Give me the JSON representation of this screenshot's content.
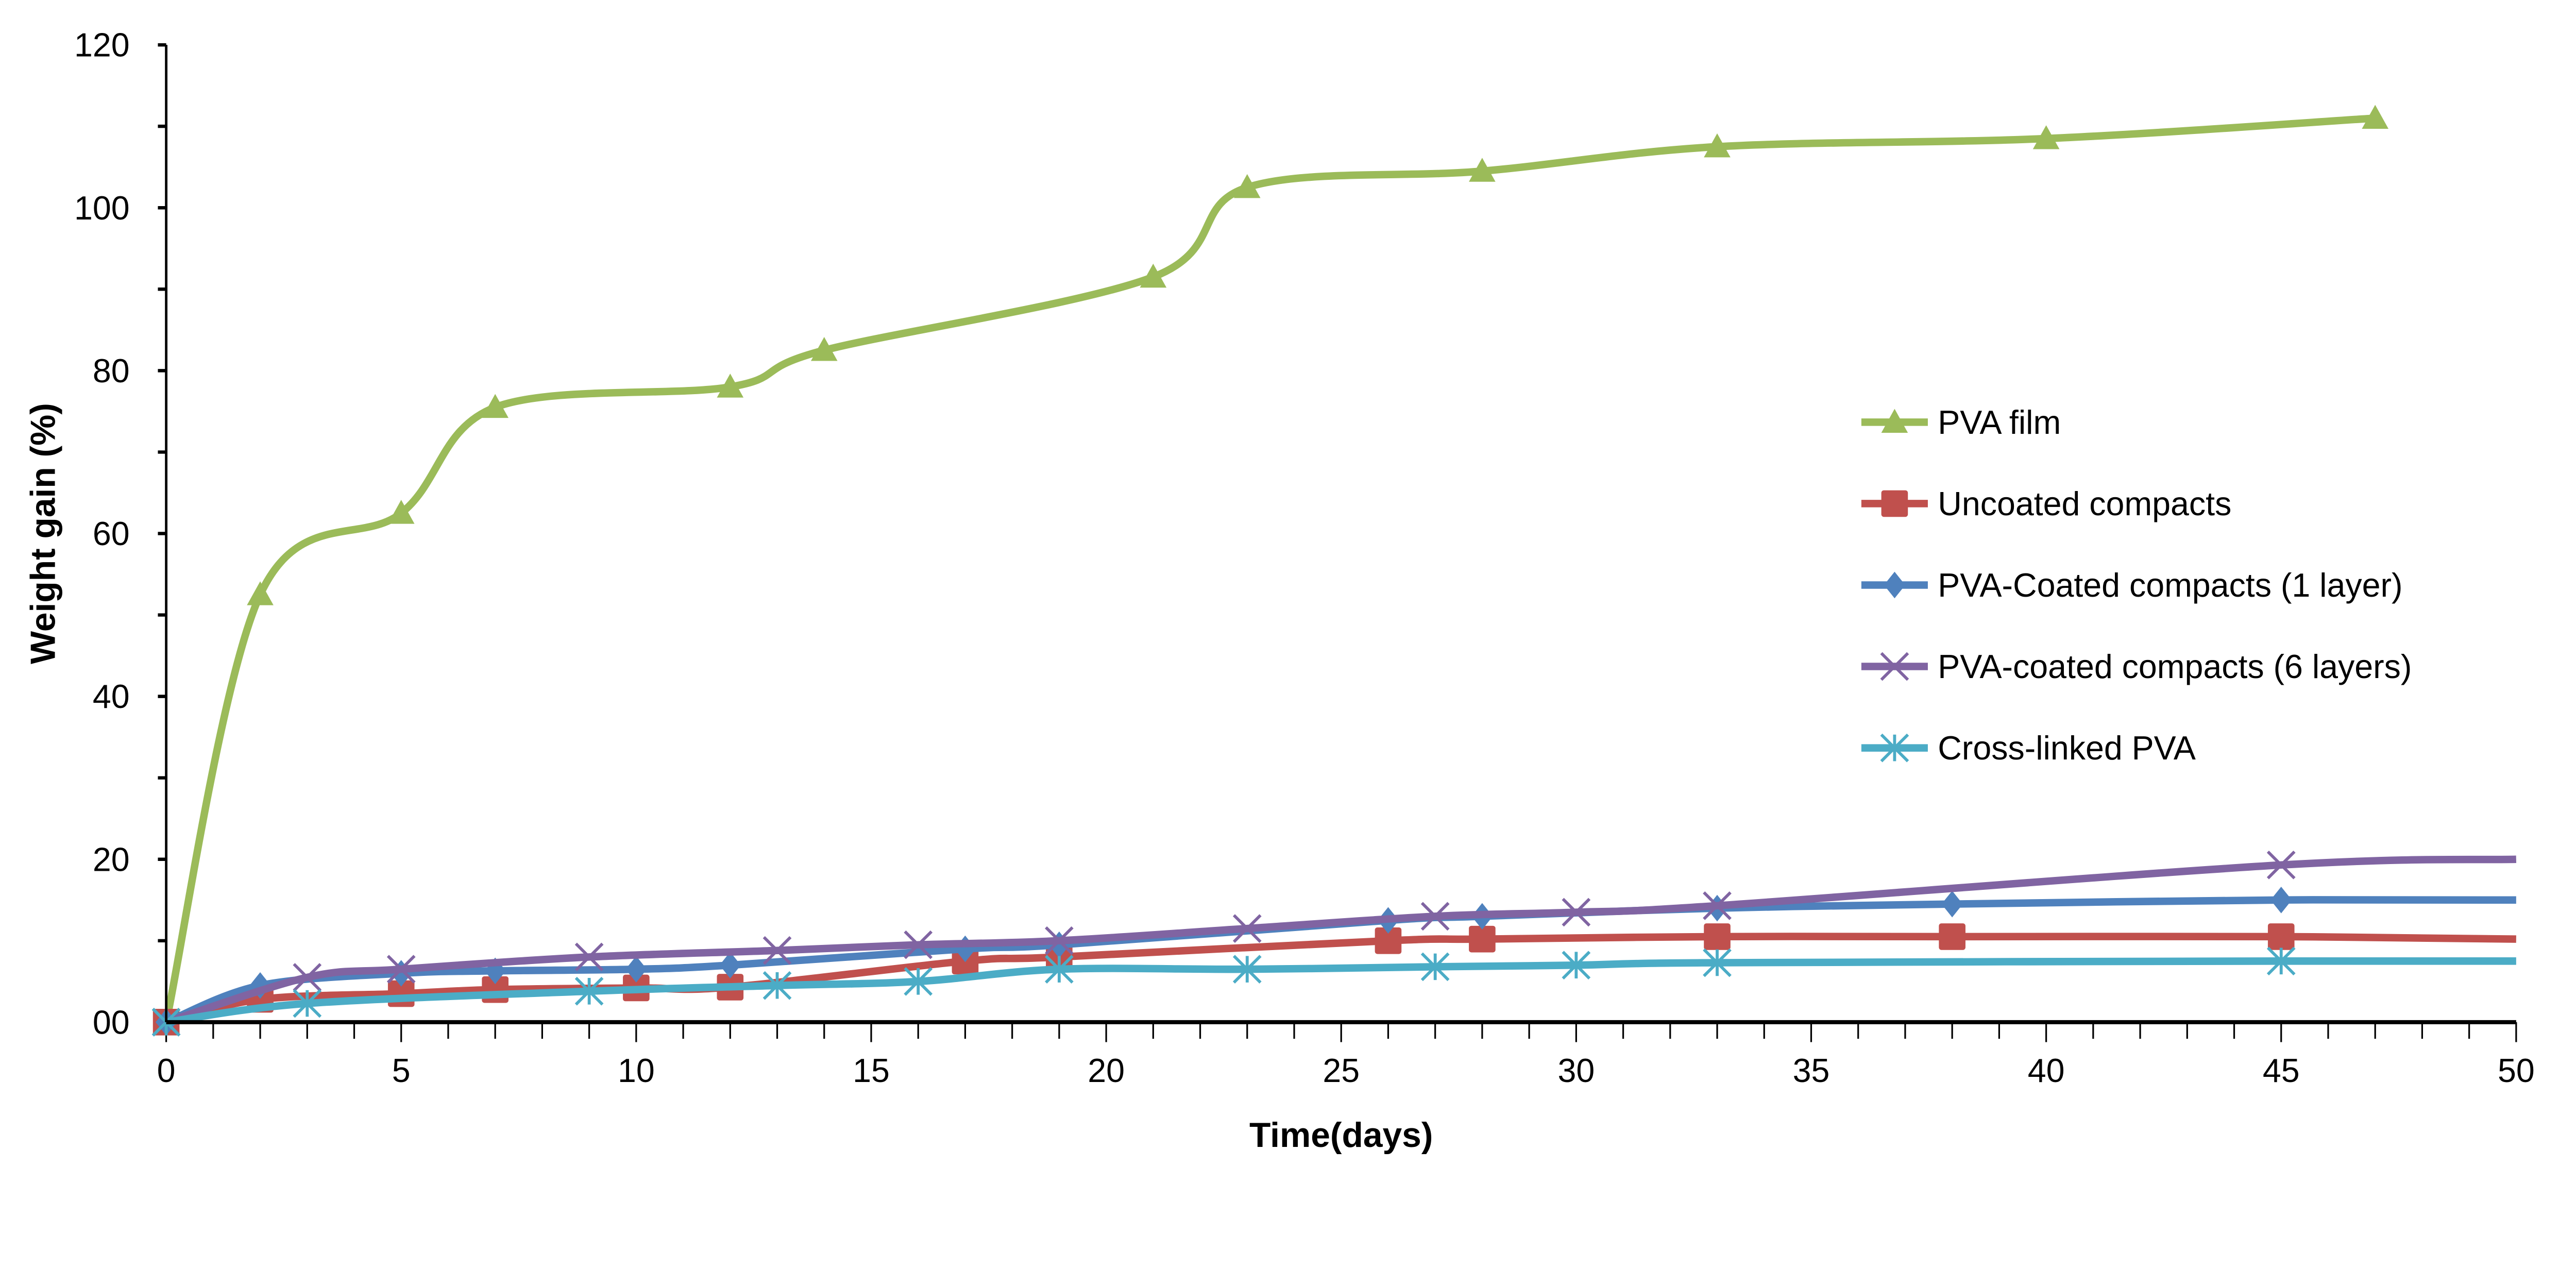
{
  "chart_data": {
    "type": "line",
    "title": "",
    "xlabel": "Time(days)",
    "ylabel": "Weight gain (%)",
    "xlim": [
      0,
      50
    ],
    "ylim": [
      0,
      120
    ],
    "x_ticks": [
      "0",
      "5",
      "10",
      "15",
      "20",
      "25",
      "30",
      "35",
      "40",
      "45",
      "50"
    ],
    "y_ticks": [
      "00",
      "20",
      "40",
      "60",
      "80",
      "100",
      "120"
    ],
    "grid": false,
    "smoothed": true,
    "legend_position": "right",
    "series": [
      {
        "name": "PVA film",
        "color": "#9BBB59",
        "marker": "triangle",
        "x": [
          0,
          2,
          5,
          7,
          12,
          14,
          21,
          23,
          28,
          33,
          40,
          47
        ],
        "y": [
          0,
          52.5,
          62.5,
          75.5,
          78,
          82.5,
          91.5,
          102.5,
          104.5,
          107.5,
          108.5,
          111
        ]
      },
      {
        "name": "Uncoated compacts",
        "color": "#C0504D",
        "marker": "square",
        "x": [
          0,
          2,
          5,
          7,
          10,
          12,
          17,
          19,
          26,
          28,
          33,
          38,
          45,
          50
        ],
        "y": [
          0,
          2.8,
          3.5,
          4,
          4.2,
          4.3,
          7.5,
          8,
          10,
          10.2,
          10.5,
          10.5,
          10.5,
          10.2
        ]
      },
      {
        "name": "PVA-Coated compacts (1 layer)",
        "color": "#4F81BD",
        "marker": "diamond",
        "x": [
          0,
          2,
          5,
          7,
          10,
          12,
          17,
          19,
          26,
          28,
          33,
          38,
          45,
          50
        ],
        "y": [
          0,
          4.5,
          6,
          6.3,
          6.5,
          7,
          9,
          9.5,
          12.5,
          13,
          14,
          14.5,
          15,
          15
        ]
      },
      {
        "name": "PVA-coated compacts (6 layers)",
        "color": "#8064A2",
        "marker": "x",
        "x": [
          0,
          3,
          5,
          9,
          13,
          16,
          19,
          23,
          27,
          30,
          33,
          45,
          50
        ],
        "y": [
          0,
          5.5,
          6.5,
          8,
          8.8,
          9.5,
          10,
          11.5,
          13,
          13.5,
          14.3,
          19.3,
          20
        ]
      },
      {
        "name": "Cross-linked PVA",
        "color": "#4BACC6",
        "marker": "star",
        "x": [
          0,
          3,
          9,
          13,
          16,
          19,
          23,
          27,
          30,
          33,
          45,
          50
        ],
        "y": [
          0,
          2.3,
          3.8,
          4.5,
          5,
          6.5,
          6.5,
          6.8,
          7,
          7.3,
          7.5,
          7.5
        ]
      }
    ]
  }
}
